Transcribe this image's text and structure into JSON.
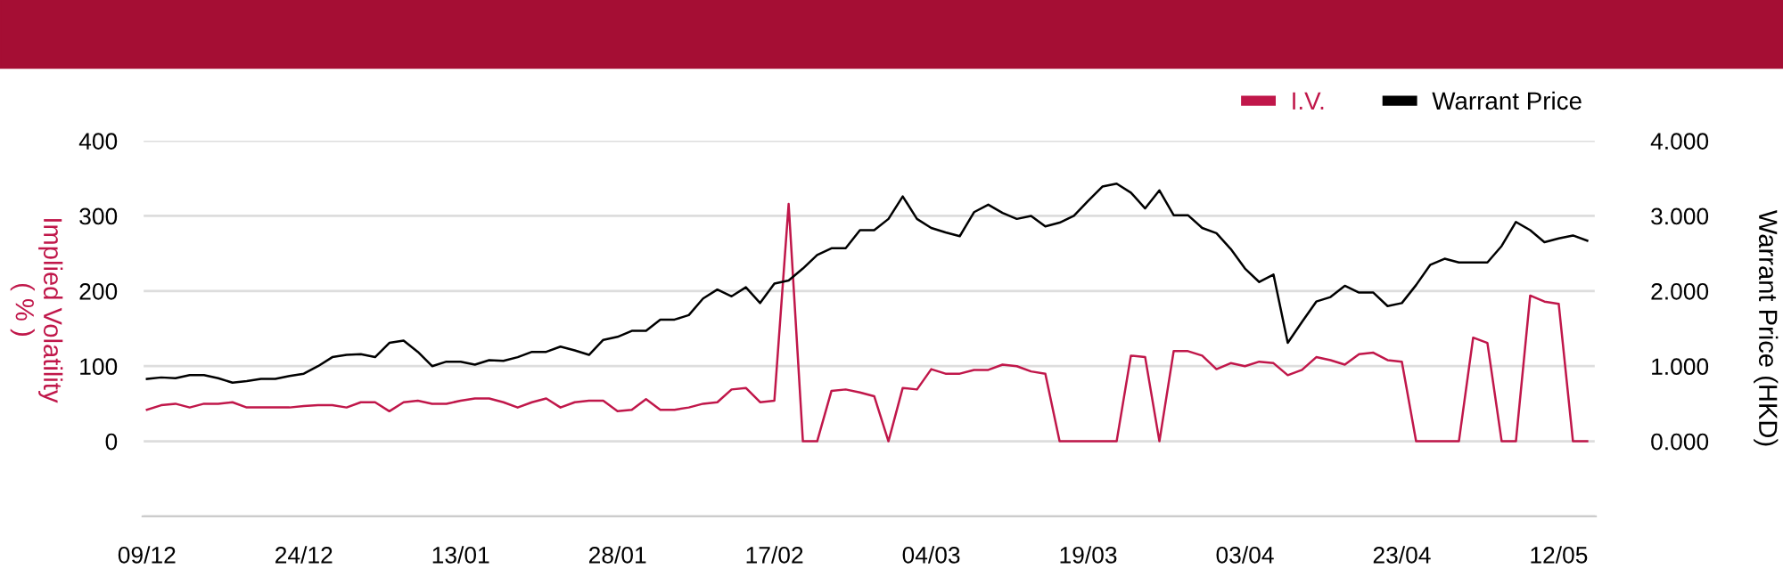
{
  "chart_data": {
    "type": "line",
    "ylabel": "Implied Volatility\n( % )",
    "y2label": "Warrant Price (HKD)",
    "categories": [
      "09/12",
      null,
      null,
      null,
      null,
      null,
      null,
      null,
      null,
      null,
      null,
      "24/12",
      null,
      null,
      null,
      null,
      null,
      null,
      null,
      null,
      null,
      null,
      "13/01",
      null,
      null,
      null,
      null,
      null,
      null,
      null,
      null,
      null,
      null,
      "28/01",
      null,
      null,
      null,
      null,
      null,
      null,
      null,
      null,
      null,
      null,
      "17/02",
      null,
      null,
      null,
      null,
      null,
      null,
      null,
      null,
      null,
      null,
      "04/03",
      null,
      null,
      null,
      null,
      null,
      null,
      null,
      null,
      null,
      null,
      "19/03",
      null,
      null,
      null,
      null,
      null,
      null,
      null,
      null,
      null,
      null,
      "03/04",
      null,
      null,
      null,
      null,
      null,
      null,
      null,
      null,
      null,
      null,
      "23/04",
      null,
      null,
      null,
      null,
      null,
      null,
      null,
      null,
      null,
      null,
      "12/05",
      null,
      null
    ],
    "series": [
      {
        "name": "I.V.",
        "color": "#c0174a",
        "values": [
          42,
          48,
          50,
          45,
          50,
          50,
          52,
          45,
          45,
          45,
          45,
          47,
          48,
          48,
          45,
          52,
          52,
          40,
          52,
          54,
          50,
          50,
          54,
          57,
          57,
          52,
          45,
          52,
          57,
          45,
          52,
          54,
          54,
          40,
          42,
          56,
          42,
          42,
          45,
          50,
          52,
          69,
          71,
          52,
          54,
          316,
          0,
          0,
          67,
          69,
          65,
          60,
          0,
          71,
          69,
          96,
          90,
          90,
          95,
          95,
          102,
          100,
          93,
          90,
          0,
          0,
          0,
          0,
          0,
          114,
          112,
          0,
          120,
          120,
          114,
          96,
          104,
          100,
          106,
          104,
          88,
          95,
          112,
          108,
          102,
          116,
          118,
          108,
          106,
          0,
          0,
          0,
          0,
          138,
          131,
          0,
          0,
          194,
          186,
          183,
          0,
          0
        ]
      },
      {
        "name": "Warrant Price",
        "color": "#000000",
        "axis": "y2",
        "values": [
          0.83,
          0.85,
          0.84,
          0.88,
          0.88,
          0.84,
          0.78,
          0.8,
          0.83,
          0.83,
          0.87,
          0.9,
          1.0,
          1.12,
          1.15,
          1.16,
          1.12,
          1.31,
          1.34,
          1.19,
          1.0,
          1.06,
          1.06,
          1.02,
          1.08,
          1.07,
          1.12,
          1.19,
          1.19,
          1.26,
          1.21,
          1.15,
          1.35,
          1.39,
          1.47,
          1.47,
          1.62,
          1.62,
          1.68,
          1.9,
          2.02,
          1.93,
          2.05,
          1.84,
          2.1,
          2.14,
          2.3,
          2.48,
          2.57,
          2.57,
          2.81,
          2.81,
          2.96,
          3.26,
          2.96,
          2.84,
          2.78,
          2.73,
          3.05,
          3.15,
          3.04,
          2.96,
          3.0,
          2.86,
          2.91,
          3.0,
          3.2,
          3.39,
          3.43,
          3.31,
          3.1,
          3.34,
          3.01,
          3.01,
          2.84,
          2.77,
          2.56,
          2.3,
          2.12,
          2.22,
          1.31,
          1.59,
          1.86,
          1.92,
          2.07,
          1.98,
          1.98,
          1.8,
          1.84,
          2.08,
          2.35,
          2.43,
          2.38,
          2.38,
          2.38,
          2.6,
          2.92,
          2.81,
          2.65,
          2.7,
          2.74,
          2.67
        ]
      }
    ],
    "ylim": [
      -100,
      400
    ],
    "yticks": [
      0,
      100,
      200,
      300,
      400
    ],
    "y2lim": [
      -1,
      4
    ],
    "y2ticks": [
      {
        "value": 0,
        "label": "0.000"
      },
      {
        "value": 1,
        "label": "1.000"
      },
      {
        "value": 2,
        "label": "2.000"
      },
      {
        "value": 3,
        "label": "3.000"
      },
      {
        "value": 4,
        "label": "4.000"
      }
    ],
    "grid": "y",
    "legend": "top right",
    "marker": "none",
    "line_style": "solid"
  }
}
